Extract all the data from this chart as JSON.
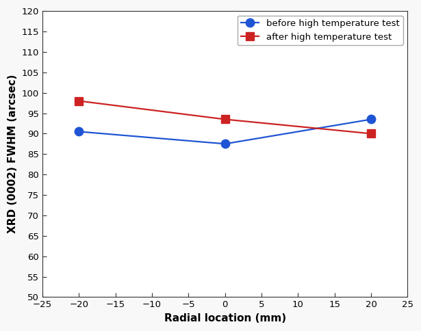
{
  "blue_x": [
    -20,
    0,
    20
  ],
  "blue_y": [
    90.5,
    87.5,
    93.5
  ],
  "red_x": [
    -20,
    0,
    20
  ],
  "red_y": [
    98.0,
    93.5,
    90.0
  ],
  "blue_color": "#1f55d4",
  "red_color": "#cc2222",
  "blue_label": "before high temperature test",
  "red_label": "after high temperature test",
  "xlabel": "Radial location (mm)",
  "ylabel": "XRD (0002) FWHM (arcsec)",
  "xlim": [
    -25,
    25
  ],
  "ylim": [
    50,
    120
  ],
  "xticks": [
    -25,
    -20,
    -15,
    -10,
    -5,
    0,
    5,
    10,
    15,
    20,
    25
  ],
  "yticks": [
    50,
    55,
    60,
    65,
    70,
    75,
    80,
    85,
    90,
    95,
    100,
    105,
    110,
    115,
    120
  ],
  "marker_size_circle": 9,
  "marker_size_square": 8,
  "linewidth": 1.6,
  "legend_loc": "upper right",
  "legend_fontsize": 9.5,
  "axis_label_fontsize": 11,
  "tick_fontsize": 9.5,
  "bg_color": "#ffffff",
  "fig_bg_color": "#f8f8f8",
  "spine_color": "#333333"
}
